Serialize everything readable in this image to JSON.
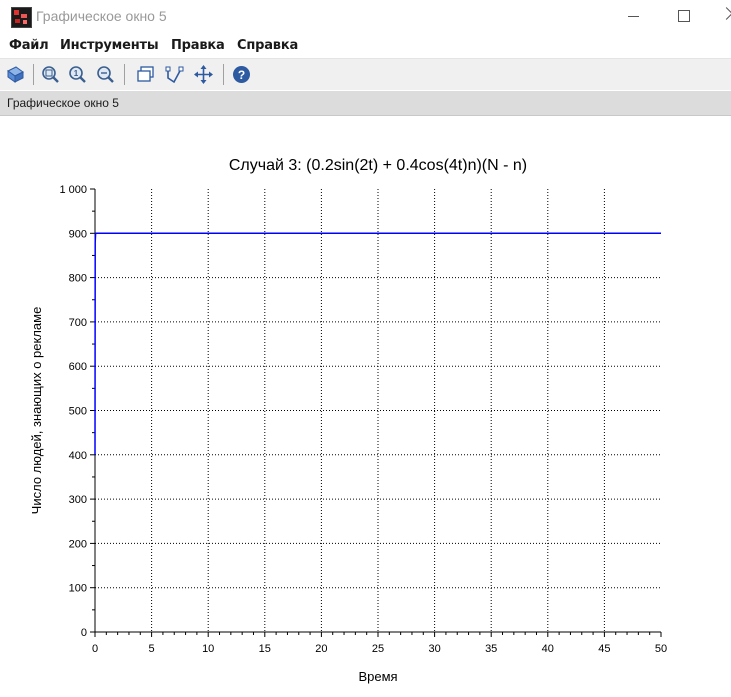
{
  "window": {
    "title": "Графическое окно 5"
  },
  "menu": {
    "items": [
      "Файл",
      "Инструменты",
      "Правка",
      "Справка"
    ]
  },
  "toolbar": {
    "buttons": [
      "rotate-icon",
      "zoom-in-icon",
      "zoom-reset-icon",
      "zoom-out-icon",
      "datatip-icon",
      "data-edit-icon",
      "pan-icon",
      "help-icon"
    ]
  },
  "status": {
    "label": "Графическое окно 5"
  },
  "colors": {
    "line": "#0000ff",
    "background": "#ffffff",
    "statusbar": "#dcdcdc"
  },
  "chart_data": {
    "type": "line",
    "title": "Случай 3: (0.2sin(2t) + 0.4cos(4t)n)(N - n)",
    "xlabel": "Время",
    "ylabel": "Число людей, знающих о рекламе",
    "xlim": [
      0,
      50
    ],
    "ylim": [
      0,
      1000
    ],
    "xticks": [
      0,
      5,
      10,
      15,
      20,
      25,
      30,
      35,
      40,
      45,
      50
    ],
    "yticks": [
      0,
      100,
      200,
      300,
      400,
      500,
      600,
      700,
      800,
      900,
      1000
    ],
    "ytick_labels": [
      "0",
      "100",
      "200",
      "300",
      "400",
      "500",
      "600",
      "700",
      "800",
      "900",
      "1 000"
    ],
    "grid": true,
    "series": [
      {
        "x": [
          0,
          0.02,
          0.05,
          0.1,
          0.2,
          0.5,
          1,
          5,
          10,
          20,
          30,
          40,
          50
        ],
        "y": [
          400,
          880,
          899,
          900,
          900,
          900,
          900,
          900,
          900,
          900,
          900,
          900,
          900
        ]
      }
    ]
  }
}
